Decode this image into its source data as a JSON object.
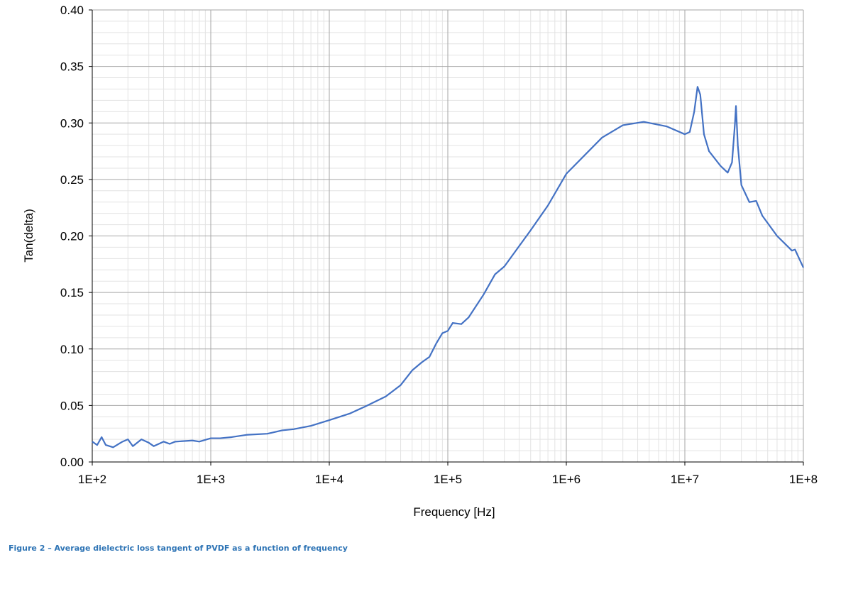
{
  "chart_data": {
    "type": "line",
    "x_label": "Frequency [Hz]",
    "y_label": "Tan(delta)",
    "caption": "Figure 2 – Average dielectric loss tangent of PVDF as a function of frequency",
    "x_log": true,
    "grid": true,
    "minor_grid": true,
    "xlim": [
      100,
      100000000
    ],
    "xticks": [
      {
        "value": 100,
        "label": "1E+2"
      },
      {
        "value": 1000,
        "label": "1E+3"
      },
      {
        "value": 10000,
        "label": "1E+4"
      },
      {
        "value": 100000,
        "label": "1E+5"
      },
      {
        "value": 1000000,
        "label": "1E+6"
      },
      {
        "value": 10000000,
        "label": "1E+7"
      },
      {
        "value": 100000000,
        "label": "1E+8"
      }
    ],
    "ylim": [
      0,
      0.4
    ],
    "yticks": [
      {
        "value": 0,
        "label": "0.00"
      },
      0.05,
      {
        "value": 0.1,
        "label": "0.10"
      },
      0.15,
      {
        "value": 0.2,
        "label": "0.20"
      },
      0.25,
      {
        "value": 0.3,
        "label": "0.30"
      },
      0.35,
      {
        "value": 0.4,
        "label": "0.40"
      }
    ],
    "x": [
      100,
      110,
      120,
      130,
      150,
      180,
      200,
      220,
      260,
      300,
      330,
      400,
      450,
      500,
      700,
      800,
      1000,
      1200,
      1500,
      2000,
      3000,
      4000,
      5000,
      7000,
      10000,
      15000,
      20000,
      30000,
      40000,
      50000,
      60000,
      70000,
      80000,
      90000,
      100000,
      110000,
      130000,
      150000,
      200000,
      250000,
      300000,
      500000,
      700000,
      1000000,
      2000000,
      3000000,
      4500000,
      7000000,
      10000000,
      11000000,
      12000000,
      12800000,
      13500000,
      14500000,
      16000000,
      20000000,
      23000000,
      25000000,
      26500000,
      27000000,
      28000000,
      30000000,
      35000000,
      40000000,
      45000000,
      60000000,
      75000000,
      80000000,
      85000000,
      100000000
    ],
    "series": [
      {
        "color": "#4472c4",
        "values": [
          0.018,
          0.015,
          0.022,
          0.015,
          0.013,
          0.018,
          0.02,
          0.014,
          0.02,
          0.017,
          0.014,
          0.018,
          0.016,
          0.018,
          0.019,
          0.018,
          0.021,
          0.021,
          0.022,
          0.024,
          0.025,
          0.028,
          0.029,
          0.032,
          0.037,
          0.043,
          0.049,
          0.058,
          0.068,
          0.081,
          0.088,
          0.093,
          0.105,
          0.114,
          0.116,
          0.123,
          0.122,
          0.128,
          0.148,
          0.166,
          0.173,
          0.205,
          0.227,
          0.255,
          0.287,
          0.298,
          0.301,
          0.297,
          0.29,
          0.292,
          0.31,
          0.332,
          0.325,
          0.29,
          0.275,
          0.262,
          0.256,
          0.265,
          0.3,
          0.315,
          0.28,
          0.245,
          0.23,
          0.231,
          0.218,
          0.2,
          0.19,
          0.187,
          0.188,
          0.172
        ]
      }
    ]
  }
}
